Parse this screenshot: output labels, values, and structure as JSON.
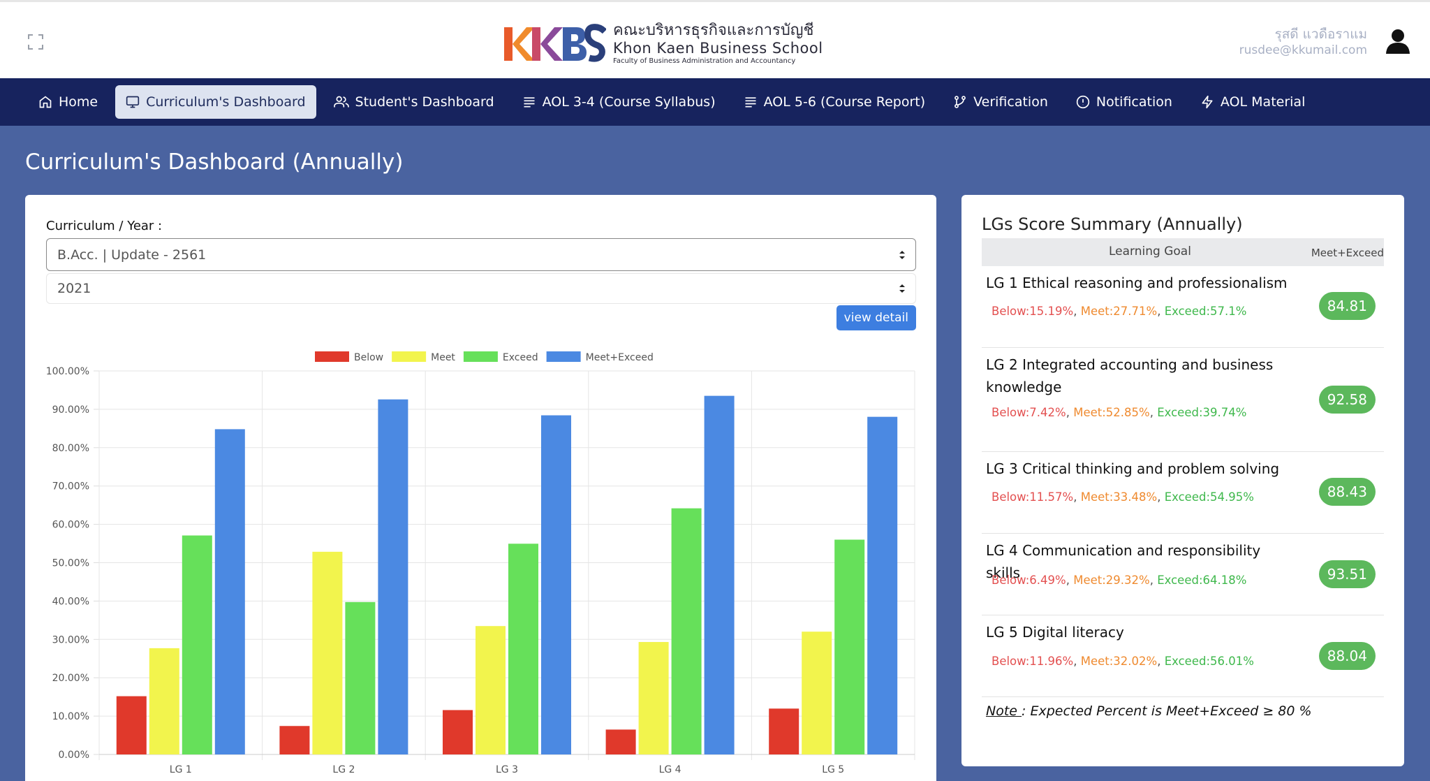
{
  "header": {
    "logo_thai": "คณะบริหารธุรกิจและการบัญชี",
    "logo_en": "Khon Kaen Business School",
    "logo_sub": "Faculty of Business Administration and Accountancy",
    "user_name": "รุสดี แวดือราแม",
    "user_email": "rusdee@kkumail.com"
  },
  "nav": {
    "items": [
      {
        "label": "Home",
        "icon": "home-icon"
      },
      {
        "label": "Curriculum's Dashboard",
        "icon": "monitor-icon"
      },
      {
        "label": "Student's Dashboard",
        "icon": "users-icon"
      },
      {
        "label": "AOL 3-4 (Course Syllabus)",
        "icon": "list-icon"
      },
      {
        "label": "AOL 5-6 (Course Report)",
        "icon": "list-icon"
      },
      {
        "label": "Verification",
        "icon": "git-branch-icon"
      },
      {
        "label": "Notification",
        "icon": "alert-circle-icon"
      },
      {
        "label": "AOL Material",
        "icon": "zap-icon"
      }
    ],
    "active": "Curriculum's Dashboard"
  },
  "page": {
    "title": "Curriculum's Dashboard (Annually)"
  },
  "filters": {
    "label": "Curriculum / Year :",
    "curriculum": "B.Acc. | Update - 2561",
    "year": "2021",
    "view_detail": "view detail"
  },
  "chart_data": {
    "type": "bar",
    "categories": [
      "LG 1",
      "LG 2",
      "LG 3",
      "LG 4",
      "LG 5"
    ],
    "series": [
      {
        "name": "Below",
        "color": "#e0392b",
        "values": [
          15.19,
          7.42,
          11.57,
          6.49,
          11.96
        ]
      },
      {
        "name": "Meet",
        "color": "#f2f44d",
        "values": [
          27.71,
          52.85,
          33.48,
          29.32,
          32.02
        ]
      },
      {
        "name": "Exceed",
        "color": "#66e05a",
        "values": [
          57.1,
          39.74,
          54.95,
          64.18,
          56.01
        ]
      },
      {
        "name": "Meet+Exceed",
        "color": "#4b89e2",
        "values": [
          84.81,
          92.58,
          88.43,
          93.51,
          88.04
        ]
      }
    ],
    "y_ticks": [
      "0.00%",
      "10.00%",
      "20.00%",
      "30.00%",
      "40.00%",
      "50.00%",
      "60.00%",
      "70.00%",
      "80.00%",
      "90.00%",
      "100.00%"
    ],
    "ylim": [
      0,
      100
    ],
    "legend_position": "top",
    "grid": true
  },
  "summary": {
    "title": "LGs Score Summary (Annually)",
    "col_goal": "Learning Goal",
    "col_me": "Meet+Exceed",
    "rows": [
      {
        "title": "LG 1 Ethical reasoning and professionalism",
        "below": "Below:15.19%",
        "meet": "Meet:27.71%",
        "exceed": "Exceed:57.1%",
        "score": "84.81"
      },
      {
        "title": "LG 2 Integrated accounting and business knowledge",
        "below": "Below:7.42%",
        "meet": "Meet:52.85%",
        "exceed": "Exceed:39.74%",
        "score": "92.58"
      },
      {
        "title": "LG 3 Critical thinking and problem solving",
        "below": "Below:11.57%",
        "meet": "Meet:33.48%",
        "exceed": "Exceed:54.95%",
        "score": "88.43"
      },
      {
        "title": "LG 4 Communication and responsibility skills",
        "below": "Below:6.49%",
        "meet": "Meet:29.32%",
        "exceed": "Exceed:64.18%",
        "score": "93.51"
      },
      {
        "title": "LG 5 Digital literacy",
        "below": "Below:11.96%",
        "meet": "Meet:32.02%",
        "exceed": "Exceed:56.01%",
        "score": "88.04"
      }
    ],
    "note_label": "Note ",
    "note_text": ": Expected Percent is Meet+Exceed ≥ 80 %",
    "separator": ", "
  },
  "colors": {
    "page_bg": "#4a63a0",
    "navbar_bg": "#17235e",
    "badge_green": "#5cb85c",
    "button_blue": "#3d7ee0"
  }
}
